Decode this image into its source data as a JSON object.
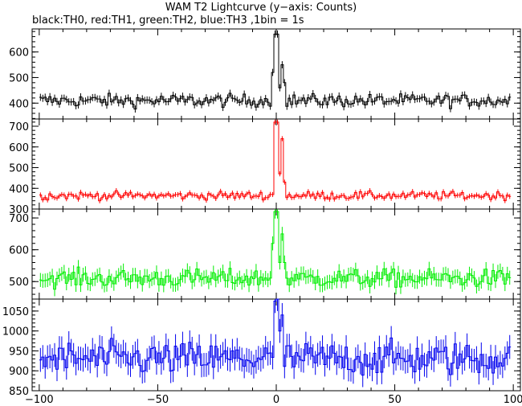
{
  "chart_data": {
    "type": "line",
    "title": "WAM T2 Lightcurve (y−axis: Counts)",
    "subtitle": "black:TH0, red:TH1, green:TH2, blue:TH3 ,1bin = 1s",
    "xlim": [
      -103,
      103
    ],
    "x_ticks": [
      -100,
      -50,
      0,
      50,
      100
    ],
    "panels": [
      {
        "name": "TH0",
        "color": "#000000",
        "ylim": [
          338,
          690
        ],
        "y_ticks": [
          400,
          500,
          600
        ],
        "base": 410,
        "noise": 18,
        "error": 14,
        "peak": [
          [
            -2,
            520
          ],
          [
            -1,
            670
          ],
          [
            0,
            670
          ],
          [
            1,
            460
          ],
          [
            2,
            550
          ],
          [
            3,
            480
          ]
        ]
      },
      {
        "name": "TH1",
        "color": "#ff0000",
        "ylim": [
          300,
          735
        ],
        "y_ticks": [
          300,
          400,
          500,
          600,
          700
        ],
        "base": 365,
        "noise": 14,
        "error": 12,
        "peak": [
          [
            -1,
            720
          ],
          [
            0,
            720
          ],
          [
            1,
            470
          ],
          [
            2,
            640
          ],
          [
            3,
            430
          ]
        ]
      },
      {
        "name": "TH2",
        "color": "#00ee00",
        "ylim": [
          445,
          728
        ],
        "y_ticks": [
          500,
          600,
          700
        ],
        "base": 510,
        "noise": 20,
        "error": 22,
        "peak": [
          [
            -2,
            620
          ],
          [
            -1,
            720
          ],
          [
            0,
            720
          ],
          [
            1,
            560
          ],
          [
            2,
            650
          ],
          [
            3,
            560
          ]
        ]
      },
      {
        "name": "TH3",
        "color": "#0000ee",
        "ylim": [
          850,
          1080
        ],
        "y_ticks": [
          850,
          900,
          950,
          1000,
          1050
        ],
        "base": 930,
        "noise": 30,
        "error": 30,
        "peak": [
          [
            -1,
            1075
          ],
          [
            0,
            1080
          ],
          [
            1,
            1000
          ],
          [
            2,
            1040
          ]
        ]
      }
    ]
  }
}
